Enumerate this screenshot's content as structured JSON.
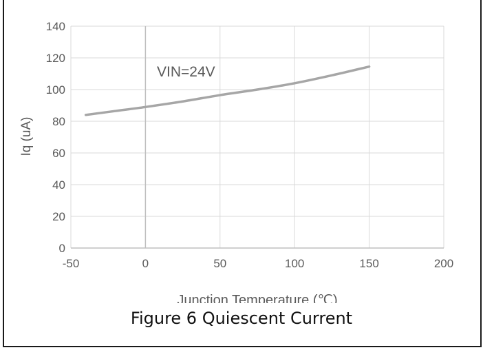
{
  "caption": "Figure 6 Quiescent Current",
  "chart_data": {
    "type": "line",
    "xlabel": "Junction Temperature (℃)",
    "ylabel": "Iq (uA)",
    "xlim": [
      -50,
      200
    ],
    "ylim": [
      0,
      140
    ],
    "x_ticks": [
      -50,
      0,
      50,
      100,
      150,
      200
    ],
    "y_ticks": [
      0,
      20,
      40,
      60,
      80,
      100,
      120,
      140
    ],
    "grid": true,
    "annotation": "VIN=24V",
    "series": [
      {
        "x": [
          -40,
          -20,
          0,
          25,
          50,
          75,
          100,
          125,
          150
        ],
        "y": [
          84,
          86.5,
          89,
          92.5,
          96.5,
          100,
          104,
          109,
          114.5
        ],
        "color": "#a6a6a6"
      }
    ]
  }
}
